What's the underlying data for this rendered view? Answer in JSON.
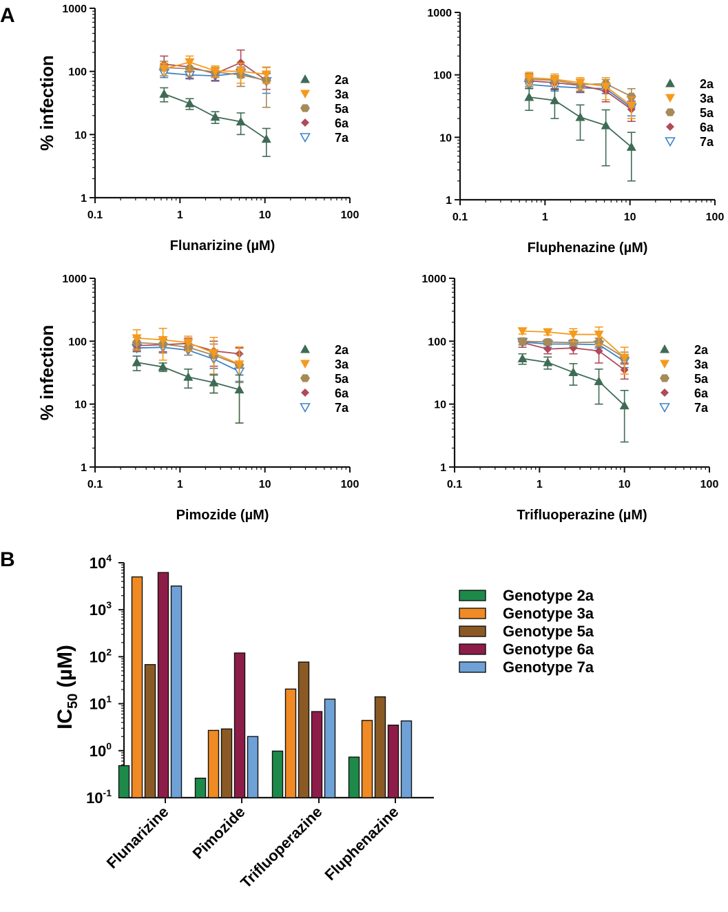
{
  "panel_labels": {
    "a": "A",
    "b": "B"
  },
  "series_colors": {
    "2a": "#3f6b55",
    "3a": "#f59a1d",
    "5a": "#a68a5a",
    "6a": "#b04a5a",
    "7a": "#3d83c9"
  },
  "series_markers": {
    "2a": "triangle-up-filled",
    "3a": "triangle-down-filled",
    "5a": "hexagon-filled",
    "6a": "diamond-filled",
    "7a": "triangle-down-open"
  },
  "bar_colors": {
    "2a": "#1d8a4a",
    "3a": "#f08a24",
    "5a": "#8b5a24",
    "6a": "#8e1c48",
    "7a": "#6ea1d6"
  },
  "chart_data": [
    {
      "type": "line",
      "title": "",
      "xlabel": "Flunarizine (µM)",
      "ylabel": "% infection",
      "xscale": "log",
      "yscale": "log",
      "xlim": [
        0.1,
        100
      ],
      "ylim": [
        1,
        1000
      ],
      "xticks": [
        "0.1",
        "1",
        "10",
        "100"
      ],
      "yticks": [
        "1",
        "10",
        "100",
        "1000"
      ],
      "legend_position": "right",
      "x": [
        0.65,
        1.3,
        2.6,
        5.2,
        10.4
      ],
      "series": [
        {
          "name": "2a",
          "values": [
            44,
            31,
            19,
            16,
            8.5
          ],
          "err": [
            11,
            6,
            4,
            6,
            4
          ]
        },
        {
          "name": "3a",
          "values": [
            110,
            140,
            102,
            100,
            90
          ],
          "err": [
            25,
            35,
            20,
            35,
            25
          ]
        },
        {
          "name": "5a",
          "values": [
            115,
            110,
            98,
            88,
            72
          ],
          "err": [
            30,
            25,
            18,
            30,
            45
          ]
        },
        {
          "name": "6a",
          "values": [
            130,
            118,
            92,
            138,
            72
          ],
          "err": [
            45,
            40,
            20,
            80,
            20
          ]
        },
        {
          "name": "7a",
          "values": [
            95,
            88,
            85,
            95,
            70
          ],
          "err": [
            15,
            12,
            15,
            15,
            25
          ]
        }
      ]
    },
    {
      "type": "line",
      "title": "",
      "xlabel": "Fluphenazine (µM)",
      "ylabel": "",
      "xscale": "log",
      "yscale": "log",
      "xlim": [
        0.1,
        100
      ],
      "ylim": [
        1,
        1000
      ],
      "xticks": [
        "0.1",
        "1",
        "10",
        "100"
      ],
      "yticks": [
        "1",
        "10",
        "100",
        "1000"
      ],
      "legend_position": "right",
      "x": [
        0.65,
        1.3,
        2.6,
        5.2,
        10.4
      ],
      "series": [
        {
          "name": "2a",
          "values": [
            44,
            39,
            21,
            15.5,
            7
          ],
          "err": [
            17,
            19,
            12,
            12,
            5
          ]
        },
        {
          "name": "3a",
          "values": [
            90,
            85,
            75,
            65,
            32
          ],
          "err": [
            20,
            18,
            15,
            25,
            12
          ]
        },
        {
          "name": "5a",
          "values": [
            85,
            82,
            70,
            72,
            45
          ],
          "err": [
            20,
            15,
            15,
            12,
            15
          ]
        },
        {
          "name": "6a",
          "values": [
            80,
            75,
            68,
            55,
            28
          ],
          "err": [
            15,
            15,
            15,
            18,
            10
          ]
        },
        {
          "name": "7a",
          "values": [
            70,
            65,
            62,
            60,
            30
          ],
          "err": [
            10,
            10,
            10,
            10,
            8
          ]
        }
      ]
    },
    {
      "type": "line",
      "title": "",
      "xlabel": "Pimozide (µM)",
      "ylabel": "% infection",
      "xscale": "log",
      "yscale": "log",
      "xlim": [
        0.1,
        100
      ],
      "ylim": [
        1,
        1000
      ],
      "xticks": [
        "0.1",
        "1",
        "10",
        "100"
      ],
      "yticks": [
        "1",
        "10",
        "100",
        "1000"
      ],
      "legend_position": "right",
      "x": [
        0.31,
        0.63,
        1.25,
        2.5,
        5
      ],
      "series": [
        {
          "name": "2a",
          "values": [
            46,
            39,
            27,
            22,
            17
          ],
          "err": [
            12,
            6,
            9,
            7,
            12
          ]
        },
        {
          "name": "3a",
          "values": [
            112,
            105,
            95,
            65,
            43
          ],
          "err": [
            40,
            55,
            25,
            50,
            38
          ]
        },
        {
          "name": "5a",
          "values": [
            95,
            90,
            80,
            60,
            42
          ],
          "err": [
            20,
            25,
            20,
            30,
            20
          ]
        },
        {
          "name": "6a",
          "values": [
            85,
            88,
            92,
            70,
            63
          ],
          "err": [
            15,
            20,
            20,
            30,
            15
          ]
        },
        {
          "name": "7a",
          "values": [
            78,
            80,
            72,
            52,
            33
          ],
          "err": [
            10,
            15,
            12,
            15,
            10
          ]
        }
      ]
    },
    {
      "type": "line",
      "title": "",
      "xlabel": "Trifluoperazine (µM)",
      "ylabel": "",
      "xscale": "log",
      "yscale": "log",
      "xlim": [
        0.1,
        100
      ],
      "ylim": [
        1,
        1000
      ],
      "xticks": [
        "0.1",
        "1",
        "10",
        "100"
      ],
      "yticks": [
        "1",
        "10",
        "100",
        "1000"
      ],
      "legend_position": "right",
      "x": [
        0.63,
        1.25,
        2.5,
        5,
        10
      ],
      "series": [
        {
          "name": "2a",
          "values": [
            53,
            46,
            32,
            23,
            9.5
          ],
          "err": [
            10,
            10,
            12,
            13,
            7
          ]
        },
        {
          "name": "3a",
          "values": [
            145,
            140,
            128,
            128,
            55
          ],
          "err": [
            15,
            15,
            30,
            40,
            25
          ]
        },
        {
          "name": "5a",
          "values": [
            100,
            97,
            95,
            97,
            55
          ],
          "err": [
            12,
            10,
            10,
            15,
            12
          ]
        },
        {
          "name": "6a",
          "values": [
            95,
            75,
            78,
            70,
            35
          ],
          "err": [
            15,
            12,
            15,
            25,
            10
          ]
        },
        {
          "name": "7a",
          "values": [
            97,
            90,
            90,
            88,
            48
          ],
          "err": [
            10,
            10,
            10,
            10,
            10
          ]
        }
      ]
    },
    {
      "type": "bar",
      "title": "",
      "xlabel": "",
      "ylabel": "IC50 (µM)",
      "ylabel_main": "IC",
      "ylabel_sub": "50",
      "ylabel_unit": " (µM)",
      "yscale": "log",
      "ylim": [
        0.1,
        10000
      ],
      "yticks": [
        {
          "base": "10",
          "exp": "4"
        },
        {
          "base": "10",
          "exp": "3"
        },
        {
          "base": "10",
          "exp": "2"
        },
        {
          "base": "10",
          "exp": "1"
        },
        {
          "base": "10",
          "exp": "0"
        },
        {
          "base": "10",
          "exp": "-1"
        }
      ],
      "categories": [
        "Flunarizine",
        "Pimozide",
        "Trifluoperazine",
        "Fluphenazine"
      ],
      "legend_position": "right",
      "series": [
        {
          "name": "Genotype 2a",
          "key": "2a",
          "values": [
            0.48,
            0.26,
            0.98,
            0.73
          ]
        },
        {
          "name": "Genotype 3a",
          "key": "3a",
          "values": [
            5000,
            2.7,
            20.5,
            4.4
          ]
        },
        {
          "name": "Genotype 5a",
          "key": "5a",
          "values": [
            68,
            2.9,
            77,
            14
          ]
        },
        {
          "name": "Genotype 6a",
          "key": "6a",
          "values": [
            6200,
            120,
            6.8,
            3.5
          ]
        },
        {
          "name": "Genotype 7a",
          "key": "7a",
          "values": [
            3200,
            2.0,
            12.5,
            4.3
          ]
        }
      ]
    }
  ]
}
